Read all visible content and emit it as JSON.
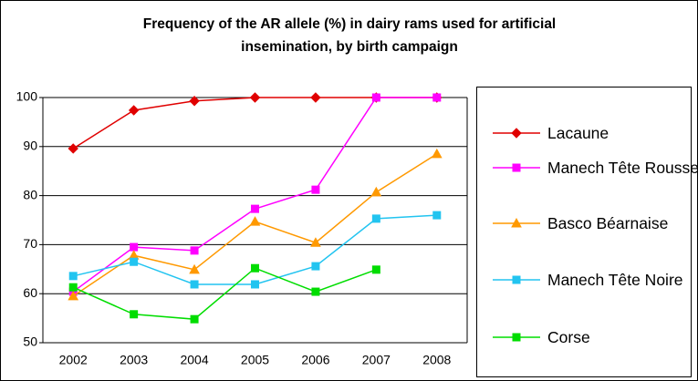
{
  "chart_data": {
    "type": "line",
    "title": "Frequency of the AR allele (%) in dairy rams used for artificial insemination, by birth campaign",
    "categories": [
      "2002",
      "2003",
      "2004",
      "2005",
      "2006",
      "2007",
      "2008"
    ],
    "ylim": [
      50,
      100
    ],
    "yticks": [
      50,
      60,
      70,
      80,
      90,
      100
    ],
    "grid": true,
    "legend": "right",
    "series": [
      {
        "name": "Lacaune",
        "color": "#e00000",
        "marker": "diamond",
        "values": [
          89.6,
          97.4,
          99.3,
          100,
          100,
          100,
          100
        ]
      },
      {
        "name": "Manech Tête Rousse",
        "color": "#ff00ff",
        "marker": "square",
        "values": [
          60.4,
          69.5,
          68.8,
          77.3,
          81.2,
          100,
          100
        ]
      },
      {
        "name": "Basco Béarnaise",
        "color": "#ff9900",
        "marker": "triangle",
        "values": [
          59.5,
          67.8,
          64.9,
          74.7,
          70.4,
          80.7,
          88.5
        ]
      },
      {
        "name": "Manech Tête Noire",
        "color": "#22c4f0",
        "marker": "square",
        "values": [
          63.6,
          66.5,
          61.9,
          61.9,
          65.6,
          75.3,
          76.0
        ]
      },
      {
        "name": "Corse",
        "color": "#00dd00",
        "marker": "square",
        "values": [
          61.3,
          55.8,
          54.8,
          65.2,
          60.4,
          64.9,
          null
        ]
      }
    ]
  }
}
